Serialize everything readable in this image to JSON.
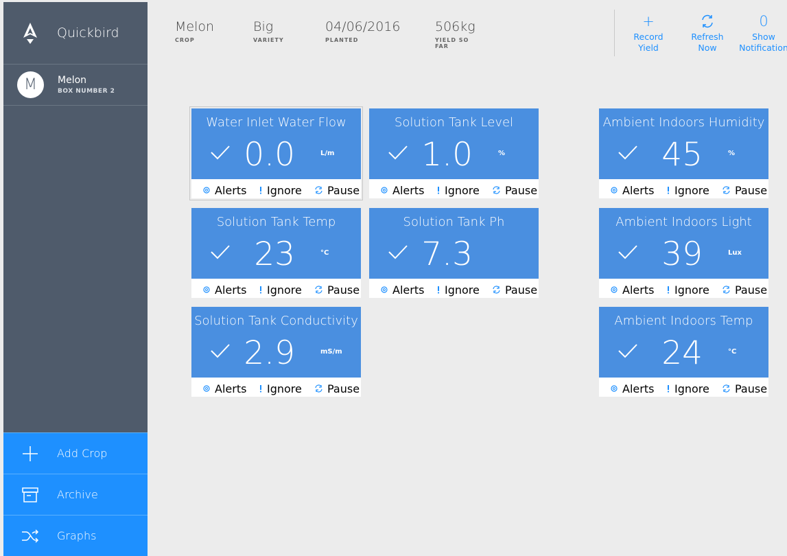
{
  "app": {
    "name": "Quickbird"
  },
  "sidebar": {
    "crop": {
      "avatar_letter": "M",
      "name": "Melon",
      "box_number": "BOX NUMBER 2"
    },
    "buttons": [
      {
        "label": "Add Crop",
        "icon": "plus-icon"
      },
      {
        "label": "Archive",
        "icon": "archive-icon"
      },
      {
        "label": "Graphs",
        "icon": "shuffle-icon"
      }
    ]
  },
  "header": {
    "stats": [
      {
        "value": "Melon",
        "label": "CROP"
      },
      {
        "value": "Big",
        "label": "VARIETY"
      },
      {
        "value": "04/06/2016",
        "label": "PLANTED"
      },
      {
        "value": "506kg",
        "label": "YIELD SO FAR"
      }
    ],
    "actions": [
      {
        "line1": "Record",
        "line2": "Yield",
        "icon": "plus-icon",
        "icon_text": "+"
      },
      {
        "line1": "Refresh",
        "line2": "Now",
        "icon": "refresh-icon",
        "icon_text": ""
      },
      {
        "line1": "Show",
        "line2": "Notification",
        "icon": "count",
        "icon_text": "0"
      }
    ]
  },
  "tile_actions": {
    "alerts": "Alerts",
    "ignore": "Ignore",
    "pause": "Pause"
  },
  "tiles": [
    {
      "title": "Water Inlet Water Flow",
      "value": "0.0",
      "unit": "L/m",
      "status_icon": "check-icon"
    },
    {
      "title": "Solution Tank Level",
      "value": "1.0",
      "unit": "%",
      "status_icon": "check-icon"
    },
    {
      "title": "Ambient Indoors Humidity",
      "value": "45",
      "unit": "%",
      "status_icon": "check-icon"
    },
    {
      "title": "Solution Tank Temp",
      "value": "23",
      "unit": "°C",
      "status_icon": "check-icon"
    },
    {
      "title": "Solution Tank Ph",
      "value": "7.3",
      "unit": "",
      "status_icon": "check-icon"
    },
    {
      "title": "Ambient Indoors Light",
      "value": "39",
      "unit": "Lux",
      "status_icon": "check-icon"
    },
    {
      "title": "Solution Tank Conductivity",
      "value": "2.9",
      "unit": "mS/m",
      "status_icon": "check-icon"
    },
    {
      "title": "Ambient Indoors Temp",
      "value": "24",
      "unit": "°C",
      "status_icon": "check-icon"
    }
  ],
  "colors": {
    "sidebar": "#4f5b6b",
    "accent": "#1e90ff",
    "tile": "#4a8fe0",
    "background": "#ececec"
  }
}
